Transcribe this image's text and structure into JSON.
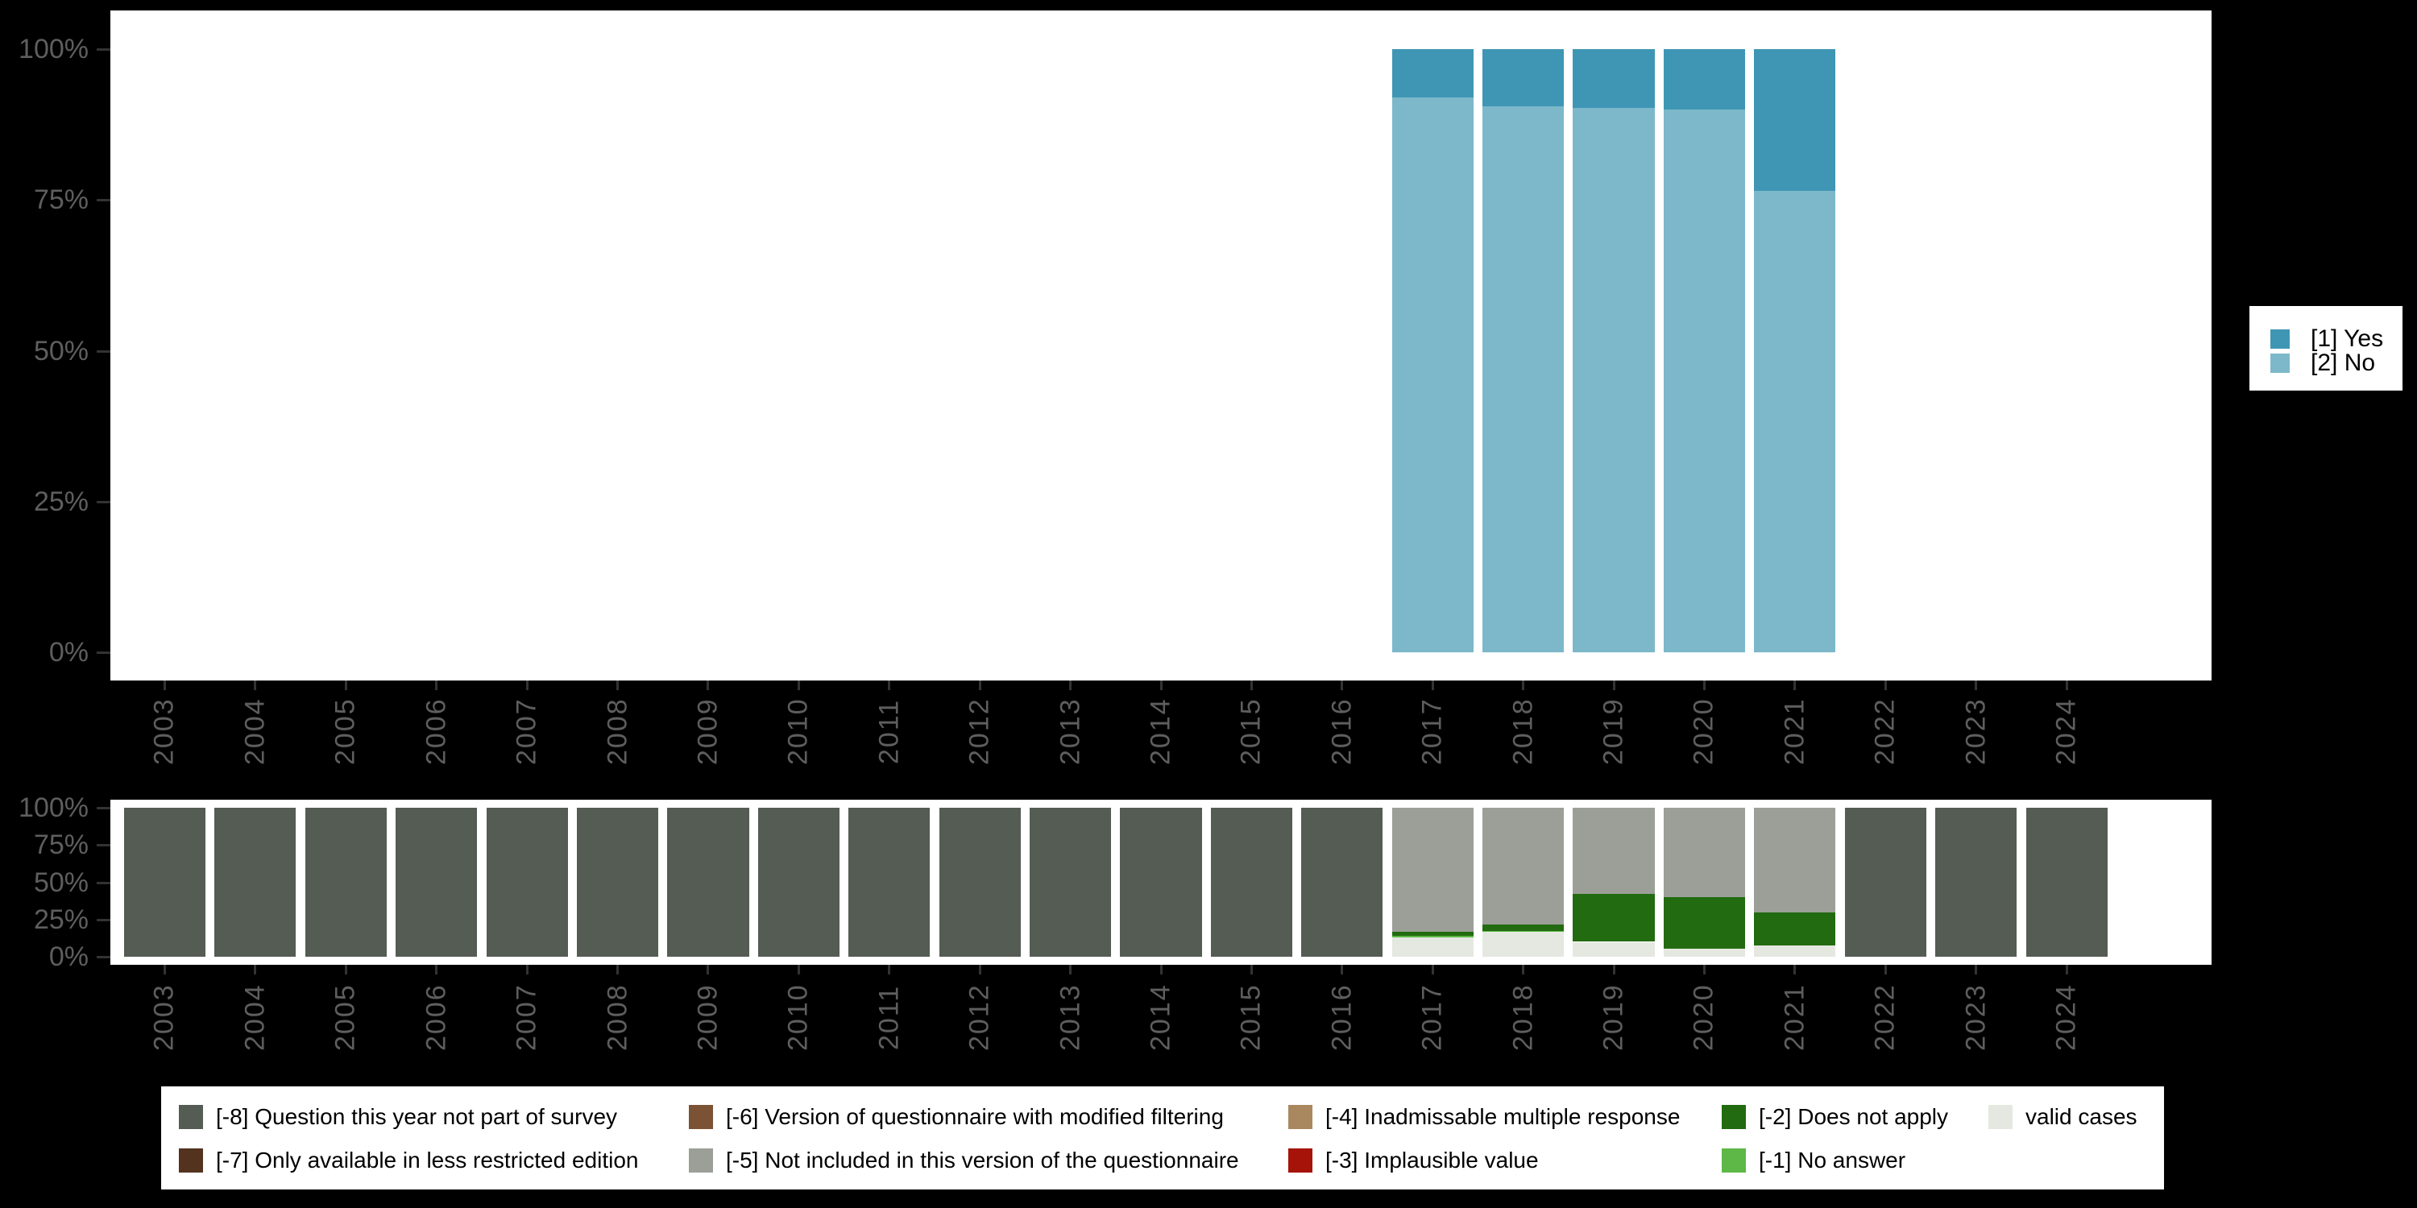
{
  "figure": {
    "background_color": "#000000",
    "panel_color": "#ffffff",
    "axis_text_color": "#5e5e5e",
    "tick_color": "#333333"
  },
  "top_legend": {
    "items": [
      {
        "label": "[1] Yes",
        "color": "#3f96b4"
      },
      {
        "label": "[2] No",
        "color": "#7cb8ca"
      }
    ]
  },
  "bottom_legend": {
    "columns": [
      [
        {
          "label": "[-8] Question this year not part of survey",
          "color": "#545c54"
        },
        {
          "label": "[-7] Only available in less restricted edition",
          "color": "#53331e"
        }
      ],
      [
        {
          "label": "[-6] Version of questionnaire with modified filtering",
          "color": "#7b5233"
        },
        {
          "label": "[-5] Not included in this version of the questionnaire",
          "color": "#9b9f98"
        }
      ],
      [
        {
          "label": "[-4] Inadmissable multiple response",
          "color": "#a9885f"
        },
        {
          "label": "[-3] Implausible value",
          "color": "#a51309"
        }
      ],
      [
        {
          "label": "[-2] Does not apply",
          "color": "#226b10"
        },
        {
          "label": "[-1] No answer",
          "color": "#5db847"
        }
      ],
      [
        {
          "label": "valid cases",
          "color": "#e4e8e0"
        }
      ]
    ]
  },
  "chart_data": [
    {
      "type": "bar",
      "stacked": true,
      "unit": "percent",
      "title": "",
      "xlabel": "",
      "ylabel": "",
      "ylim": [
        0,
        100
      ],
      "yticks": [
        100,
        75,
        50,
        25,
        0
      ],
      "ytick_labels": [
        "100%",
        "75%",
        "50%",
        "25%",
        "0%"
      ],
      "grid": false,
      "legend_position": "right",
      "categories": [
        "2003",
        "2004",
        "2005",
        "2006",
        "2007",
        "2008",
        "2009",
        "2010",
        "2011",
        "2012",
        "2013",
        "2014",
        "2015",
        "2016",
        "2017",
        "2018",
        "2019",
        "2020",
        "2021",
        "2022",
        "2023",
        "2024"
      ],
      "series": [
        {
          "name": "[1] Yes",
          "color": "#3f96b4",
          "values": [
            0,
            0,
            0,
            0,
            0,
            0,
            0,
            0,
            0,
            0,
            0,
            0,
            0,
            0,
            8,
            9.5,
            9.7,
            10,
            23.5,
            0,
            0,
            0
          ]
        },
        {
          "name": "[2] No",
          "color": "#7cb8ca",
          "values": [
            0,
            0,
            0,
            0,
            0,
            0,
            0,
            0,
            0,
            0,
            0,
            0,
            0,
            0,
            92,
            90.5,
            90.3,
            90,
            76.5,
            0,
            0,
            0
          ]
        }
      ]
    },
    {
      "type": "bar",
      "stacked": true,
      "unit": "percent",
      "title": "",
      "xlabel": "",
      "ylabel": "",
      "ylim": [
        0,
        100
      ],
      "yticks": [
        100,
        75,
        50,
        25,
        0
      ],
      "ytick_labels": [
        "100%",
        "75%",
        "50%",
        "25%",
        "0%"
      ],
      "grid": false,
      "legend_position": "bottom",
      "categories": [
        "2003",
        "2004",
        "2005",
        "2006",
        "2007",
        "2008",
        "2009",
        "2010",
        "2011",
        "2012",
        "2013",
        "2014",
        "2015",
        "2016",
        "2017",
        "2018",
        "2019",
        "2020",
        "2021",
        "2022",
        "2023",
        "2024"
      ],
      "series": [
        {
          "name": "[-8] Question this year not part of survey",
          "color": "#545c54",
          "values": [
            100,
            100,
            100,
            100,
            100,
            100,
            100,
            100,
            100,
            100,
            100,
            100,
            100,
            100,
            0,
            0,
            0,
            0,
            0,
            100,
            100,
            100
          ]
        },
        {
          "name": "[-5] Not included in this version of the questionnaire",
          "color": "#9b9f98",
          "values": [
            0,
            0,
            0,
            0,
            0,
            0,
            0,
            0,
            0,
            0,
            0,
            0,
            0,
            0,
            83.5,
            78.5,
            58,
            60,
            70,
            0,
            0,
            0
          ]
        },
        {
          "name": "[-2] Does not apply",
          "color": "#226b10",
          "values": [
            0,
            0,
            0,
            0,
            0,
            0,
            0,
            0,
            0,
            0,
            0,
            0,
            0,
            0,
            2.5,
            4.5,
            32,
            34.5,
            22.5,
            0,
            0,
            0
          ]
        },
        {
          "name": "[-1] No answer",
          "color": "#5db847",
          "values": [
            0,
            0,
            0,
            0,
            0,
            0,
            0,
            0,
            0,
            0,
            0,
            0,
            0,
            0,
            1,
            0.5,
            0,
            0,
            0,
            0,
            0,
            0
          ]
        },
        {
          "name": "valid cases",
          "color": "#e4e8e0",
          "values": [
            0,
            0,
            0,
            0,
            0,
            0,
            0,
            0,
            0,
            0,
            0,
            0,
            0,
            0,
            13,
            16.5,
            10,
            5.5,
            7.5,
            0,
            0,
            0
          ]
        }
      ]
    }
  ]
}
